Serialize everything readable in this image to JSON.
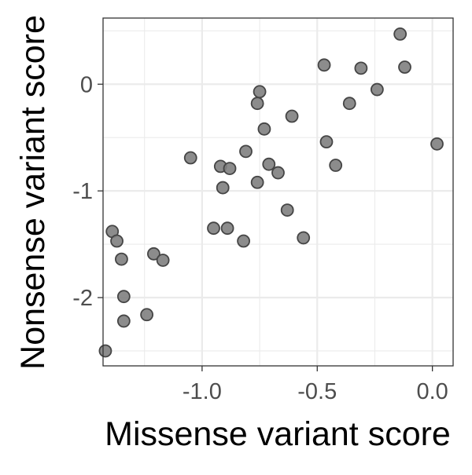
{
  "chart_data": {
    "type": "scatter",
    "xlabel": "Missense variant score",
    "ylabel": "Nonsense variant score",
    "xlim": [
      -1.43,
      0.09
    ],
    "ylim": [
      -2.64,
      0.62
    ],
    "x_ticks": [
      -1.0,
      -0.5,
      0.0
    ],
    "x_tick_labels": [
      "-1.0",
      "-0.5",
      "0.0"
    ],
    "y_ticks": [
      0,
      -1,
      -2
    ],
    "y_tick_labels": [
      "0",
      "-1",
      "-2"
    ],
    "grid": true,
    "colors": {
      "point_fill": "#808080",
      "point_stroke": "#454545",
      "grid": "#ebebeb",
      "panel_border": "#333333",
      "tick_text": "#4d4d4d",
      "axis_title": "#000000"
    },
    "points": [
      {
        "x": -0.14,
        "y": 0.47
      },
      {
        "x": -0.47,
        "y": 0.18
      },
      {
        "x": -0.31,
        "y": 0.15
      },
      {
        "x": -0.12,
        "y": 0.16
      },
      {
        "x": -0.24,
        "y": -0.05
      },
      {
        "x": -0.75,
        "y": -0.07
      },
      {
        "x": -0.76,
        "y": -0.18
      },
      {
        "x": -0.36,
        "y": -0.18
      },
      {
        "x": -0.61,
        "y": -0.3
      },
      {
        "x": -0.73,
        "y": -0.42
      },
      {
        "x": -0.46,
        "y": -0.54
      },
      {
        "x": 0.02,
        "y": -0.56
      },
      {
        "x": -0.81,
        "y": -0.63
      },
      {
        "x": -1.05,
        "y": -0.69
      },
      {
        "x": -0.42,
        "y": -0.76
      },
      {
        "x": -0.71,
        "y": -0.75
      },
      {
        "x": -0.92,
        "y": -0.77
      },
      {
        "x": -0.88,
        "y": -0.79
      },
      {
        "x": -0.67,
        "y": -0.83
      },
      {
        "x": -0.76,
        "y": -0.92
      },
      {
        "x": -0.91,
        "y": -0.97
      },
      {
        "x": -0.63,
        "y": -1.18
      },
      {
        "x": -0.95,
        "y": -1.35
      },
      {
        "x": -0.89,
        "y": -1.35
      },
      {
        "x": -0.56,
        "y": -1.44
      },
      {
        "x": -0.82,
        "y": -1.47
      },
      {
        "x": -1.39,
        "y": -1.38
      },
      {
        "x": -1.37,
        "y": -1.47
      },
      {
        "x": -1.21,
        "y": -1.59
      },
      {
        "x": -1.35,
        "y": -1.64
      },
      {
        "x": -1.17,
        "y": -1.65
      },
      {
        "x": -1.34,
        "y": -1.99
      },
      {
        "x": -1.24,
        "y": -2.16
      },
      {
        "x": -1.34,
        "y": -2.22
      },
      {
        "x": -1.42,
        "y": -2.5
      }
    ]
  }
}
